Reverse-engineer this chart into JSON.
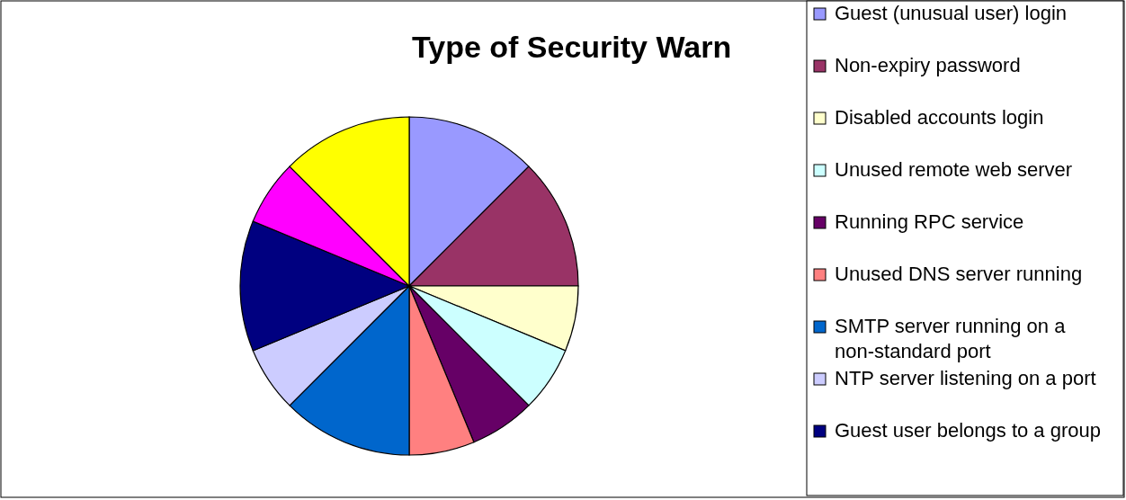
{
  "chart_data": {
    "type": "pie",
    "title": "Type of Security Warn",
    "categories": [
      "Guest (unusual user) login",
      "Non-expiry password",
      "Disabled accounts login",
      "Unused remote web server",
      "Running RPC service",
      "Unused DNS server running",
      "SMTP server running on a non-standard port",
      "NTP server listening on a port",
      "Guest user belongs to a group",
      null,
      null
    ],
    "values": [
      12.5,
      12.5,
      6.25,
      6.25,
      6.25,
      6.25,
      12.5,
      6.25,
      12.5,
      6.25,
      12.5
    ],
    "colors": [
      "#9999ff",
      "#993366",
      "#ffffcc",
      "#ccffff",
      "#660066",
      "#ff8080",
      "#0066cc",
      "#ccccff",
      "#000080",
      "#ff00ff",
      "#ffff00"
    ],
    "legend": "right"
  }
}
